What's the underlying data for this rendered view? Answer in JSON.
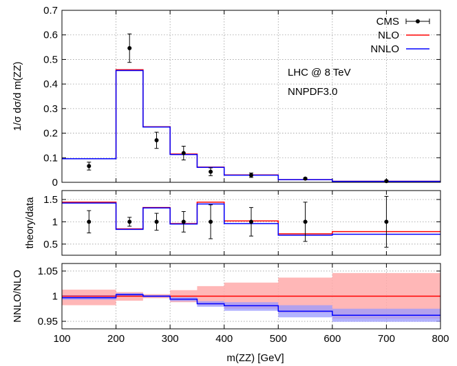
{
  "chart_data": [
    {
      "type": "line",
      "panel": "distribution",
      "ylabel": "1/σ dσ/d m(ZZ)",
      "xlim": [
        100,
        800
      ],
      "ylim": [
        0,
        0.7
      ],
      "yticks": [
        "0",
        "0.1",
        "0.2",
        "0.3",
        "0.4",
        "0.5",
        "0.6",
        "0.7"
      ],
      "grid": true,
      "legend": "top-right",
      "annotations": [
        "LHC @ 8 TeV",
        "NNPDF3.0"
      ],
      "bin_edges": [
        100,
        200,
        250,
        300,
        350,
        400,
        500,
        600,
        800
      ],
      "series": [
        {
          "name": "CMS",
          "kind": "points",
          "color": "#000000",
          "x": [
            150,
            225,
            275,
            325,
            375,
            450,
            550,
            700
          ],
          "y": [
            0.066,
            0.546,
            0.171,
            0.119,
            0.043,
            0.029,
            0.015,
            0.005
          ],
          "yerr": [
            0.016,
            0.058,
            0.033,
            0.028,
            0.016,
            0.009,
            0.003,
            0.003
          ]
        },
        {
          "name": "NLO",
          "kind": "step",
          "color": "#ff0000",
          "values": [
            0.096,
            0.458,
            0.226,
            0.115,
            0.062,
            0.03,
            0.011,
            0.0042
          ]
        },
        {
          "name": "NNLO",
          "kind": "step",
          "color": "#0000ff",
          "values": [
            0.096,
            0.455,
            0.225,
            0.113,
            0.061,
            0.029,
            0.0107,
            0.004
          ]
        }
      ]
    },
    {
      "type": "line",
      "panel": "ratio-data",
      "ylabel": "theory/data",
      "xlim": [
        100,
        800
      ],
      "ylim": [
        0.25,
        1.7
      ],
      "yticks": [
        "0.5",
        "1",
        "1.5"
      ],
      "grid": true,
      "bin_edges": [
        100,
        200,
        250,
        300,
        350,
        400,
        500,
        600,
        800
      ],
      "series": [
        {
          "name": "CMS",
          "kind": "points",
          "color": "#000000",
          "x": [
            150,
            225,
            275,
            325,
            375,
            450,
            550,
            700
          ],
          "y": [
            1,
            1,
            1,
            1,
            1,
            1,
            1,
            1
          ],
          "yerr": [
            0.25,
            0.1,
            0.19,
            0.23,
            0.38,
            0.32,
            0.44,
            0.57
          ]
        },
        {
          "name": "NLO",
          "kind": "step",
          "color": "#ff0000",
          "values": [
            1.44,
            0.84,
            1.32,
            0.96,
            1.44,
            1.02,
            0.73,
            0.78
          ]
        },
        {
          "name": "NNLO",
          "kind": "step",
          "color": "#0000ff",
          "values": [
            1.42,
            0.83,
            1.31,
            0.95,
            1.4,
            0.96,
            0.7,
            0.72
          ]
        }
      ]
    },
    {
      "type": "area",
      "panel": "ratio-nlo",
      "xlabel": "m(ZZ) [GeV]",
      "ylabel": "NNLO/NLO",
      "xlim": [
        100,
        800
      ],
      "ylim": [
        0.935,
        1.065
      ],
      "xticks": [
        "100",
        "200",
        "300",
        "400",
        "500",
        "600",
        "700",
        "800"
      ],
      "yticks": [
        "0.95",
        "1",
        "1.05"
      ],
      "grid": true,
      "bin_edges": [
        100,
        200,
        250,
        300,
        350,
        400,
        500,
        600,
        800
      ],
      "series": [
        {
          "name": "NLO",
          "color": "#ff0000",
          "band_color": "#ffaaaa",
          "values": [
            1,
            1,
            1,
            1,
            1,
            1,
            1,
            1
          ],
          "band_low": [
            0.982,
            0.991,
            0.996,
            0.988,
            0.982,
            0.975,
            0.967,
            0.955
          ],
          "band_high": [
            1.013,
            1.008,
            1.004,
            1.012,
            1.02,
            1.027,
            1.037,
            1.046
          ]
        },
        {
          "name": "NNLO",
          "color": "#0000ff",
          "band_color": "#9999ff",
          "values": [
            0.997,
            1.003,
            1.0,
            0.994,
            0.985,
            0.981,
            0.97,
            0.962
          ],
          "band_low": [
            0.993,
            1.0,
            0.998,
            0.99,
            0.979,
            0.971,
            0.958,
            0.949
          ],
          "band_high": [
            1.002,
            1.006,
            1.002,
            0.998,
            0.99,
            0.988,
            0.982,
            0.975
          ]
        }
      ]
    }
  ]
}
